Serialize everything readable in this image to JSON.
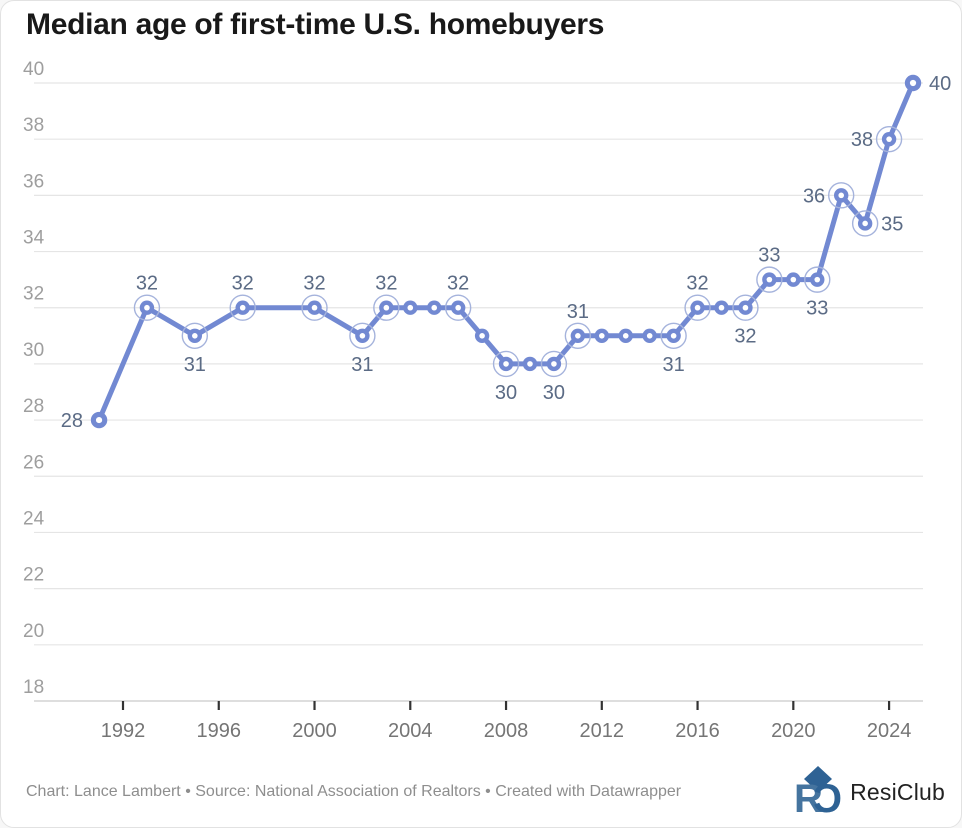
{
  "title": "Median age of first-time U.S. homebuyers",
  "footer": {
    "credit": "Chart: Lance Lambert • Source: National Association of Realtors • Created with Datawrapper",
    "logo_text": "ResiClub"
  },
  "colors": {
    "line": "#7289d2",
    "marker_center": "#ffffff",
    "halo": "#a5b3dc",
    "data_label": "#5b6b85",
    "grid": "#e5e5e5",
    "baseline": "#c9c9c9",
    "tick_mark": "#333333",
    "y_tick_label": "#9e9e9e",
    "x_tick_label": "#757575",
    "title": "#191919",
    "logo_blue": "#45749f",
    "logo_dark_blue": "#2e6294"
  },
  "chart_data": {
    "type": "line",
    "title": "Median age of first-time U.S. homebuyers",
    "xlabel": "",
    "ylabel": "",
    "grid": "horizontal",
    "legend": "none",
    "ylim": [
      17,
      41
    ],
    "xlim": [
      1989.5,
      2026
    ],
    "y_ticks": [
      18,
      20,
      22,
      24,
      26,
      28,
      30,
      32,
      34,
      36,
      38,
      40
    ],
    "x_ticks": [
      1992,
      1996,
      2000,
      2004,
      2008,
      2012,
      2016,
      2020,
      2024
    ],
    "points": [
      {
        "year": 1991,
        "value": 28,
        "label": "28",
        "placement": "left",
        "halo": false
      },
      {
        "year": 1993,
        "value": 32,
        "label": "32",
        "placement": "above",
        "halo": true
      },
      {
        "year": 1995,
        "value": 31,
        "label": "31",
        "placement": "below",
        "halo": true
      },
      {
        "year": 1997,
        "value": 32,
        "label": "32",
        "placement": "above",
        "halo": true
      },
      {
        "year": 2000,
        "value": 32,
        "label": "32",
        "placement": "above",
        "halo": true
      },
      {
        "year": 2002,
        "value": 31,
        "label": "31",
        "placement": "below",
        "halo": true
      },
      {
        "year": 2003,
        "value": 32,
        "label": "32",
        "placement": "above",
        "halo": true
      },
      {
        "year": 2004,
        "value": 32,
        "label": "",
        "placement": "none",
        "halo": false
      },
      {
        "year": 2005,
        "value": 32,
        "label": "",
        "placement": "none",
        "halo": false
      },
      {
        "year": 2006,
        "value": 32,
        "label": "32",
        "placement": "above",
        "halo": true
      },
      {
        "year": 2007,
        "value": 31,
        "label": "",
        "placement": "none",
        "halo": false
      },
      {
        "year": 2008,
        "value": 30,
        "label": "30",
        "placement": "below",
        "halo": true
      },
      {
        "year": 2009,
        "value": 30,
        "label": "",
        "placement": "none",
        "halo": false
      },
      {
        "year": 2010,
        "value": 30,
        "label": "30",
        "placement": "below",
        "halo": true
      },
      {
        "year": 2011,
        "value": 31,
        "label": "31",
        "placement": "above",
        "halo": true
      },
      {
        "year": 2012,
        "value": 31,
        "label": "",
        "placement": "none",
        "halo": false
      },
      {
        "year": 2013,
        "value": 31,
        "label": "",
        "placement": "none",
        "halo": false
      },
      {
        "year": 2014,
        "value": 31,
        "label": "",
        "placement": "none",
        "halo": false
      },
      {
        "year": 2015,
        "value": 31,
        "label": "31",
        "placement": "below",
        "halo": true
      },
      {
        "year": 2016,
        "value": 32,
        "label": "32",
        "placement": "above",
        "halo": true
      },
      {
        "year": 2017,
        "value": 32,
        "label": "",
        "placement": "none",
        "halo": false
      },
      {
        "year": 2018,
        "value": 32,
        "label": "32",
        "placement": "below",
        "halo": true
      },
      {
        "year": 2019,
        "value": 33,
        "label": "33",
        "placement": "above",
        "halo": true
      },
      {
        "year": 2020,
        "value": 33,
        "label": "",
        "placement": "none",
        "halo": false
      },
      {
        "year": 2021,
        "value": 33,
        "label": "33",
        "placement": "below",
        "halo": true
      },
      {
        "year": 2022,
        "value": 36,
        "label": "36",
        "placement": "left",
        "halo": true
      },
      {
        "year": 2023,
        "value": 35,
        "label": "35",
        "placement": "right",
        "halo": true
      },
      {
        "year": 2024,
        "value": 38,
        "label": "38",
        "placement": "left",
        "halo": true
      },
      {
        "year": 2025,
        "value": 40,
        "label": "40",
        "placement": "right",
        "halo": false
      }
    ]
  }
}
